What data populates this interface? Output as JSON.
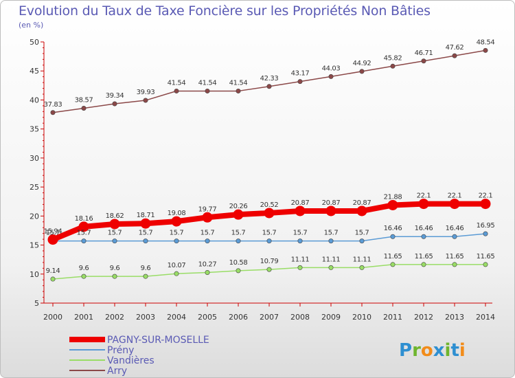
{
  "title": "Evolution du Taux de Taxe Foncière sur les Propriétés Non Bâties",
  "unit": "(en %)",
  "logo": {
    "letters": [
      "P",
      "r",
      "o",
      "x",
      "i",
      "t",
      "i"
    ],
    "colors": [
      "#2e8fd1",
      "#6fb52e",
      "#f28c1a",
      "#2e8fd1",
      "#6fb52e",
      "#2e8fd1",
      "#f28c1a"
    ]
  },
  "chart_data": {
    "type": "line",
    "title": "Evolution du Taux de Taxe Foncière sur les Propriétés Non Bâties",
    "ylabel": "(en %)",
    "x": [
      "2000",
      "2001",
      "2002",
      "2003",
      "2004",
      "2005",
      "2006",
      "2007",
      "2008",
      "2009",
      "2010",
      "2011",
      "2012",
      "2013",
      "2014"
    ],
    "ylim": [
      5,
      50
    ],
    "yticks": [
      5,
      10,
      15,
      20,
      25,
      30,
      35,
      40,
      45,
      50
    ],
    "grid": false,
    "legend_position": "bottom-left",
    "series": [
      {
        "name": "PAGNY-SUR-MOSELLE",
        "color": "#ee0000",
        "emphasis": true,
        "values": [
          15.94,
          18.16,
          18.62,
          18.71,
          19.08,
          19.77,
          20.26,
          20.52,
          20.87,
          20.87,
          20.87,
          21.88,
          22.1,
          22.1,
          22.1
        ],
        "labels": [
          "15.94",
          "18.16",
          "18.62",
          "18.71",
          "19.08",
          "19.77",
          "20.26",
          "20.52",
          "20.87",
          "20.87",
          "20.87",
          "21.88",
          "22.1",
          "22.1",
          "22.1"
        ]
      },
      {
        "name": "Prény",
        "color": "#5b9bd5",
        "values": [
          15.7,
          15.7,
          15.7,
          15.7,
          15.7,
          15.7,
          15.7,
          15.7,
          15.7,
          15.7,
          15.7,
          16.46,
          16.46,
          16.46,
          16.95
        ],
        "labels": [
          "15.7",
          "15.7",
          "15.7",
          "15.7",
          "15.7",
          "15.7",
          "15.7",
          "15.7",
          "15.7",
          "15.7",
          "15.7",
          "16.46",
          "16.46",
          "16.46",
          "16.95"
        ]
      },
      {
        "name": "Vandières",
        "color": "#99dd66",
        "values": [
          9.14,
          9.6,
          9.6,
          9.6,
          10.07,
          10.27,
          10.58,
          10.79,
          11.11,
          11.11,
          11.11,
          11.65,
          11.65,
          11.65,
          11.65
        ],
        "labels": [
          "9.14",
          "9.6",
          "9.6",
          "9.6",
          "10.07",
          "10.27",
          "10.58",
          "10.79",
          "11.11",
          "11.11",
          "11.11",
          "11.65",
          "11.65",
          "11.65",
          "11.65"
        ]
      },
      {
        "name": "Arry",
        "color": "#8b4848",
        "values": [
          37.83,
          38.57,
          39.34,
          39.93,
          41.54,
          41.54,
          41.54,
          42.33,
          43.17,
          44.03,
          44.92,
          45.82,
          46.71,
          47.62,
          48.54
        ],
        "labels": [
          "37.83",
          "38.57",
          "39.34",
          "39.93",
          "41.54",
          "41.54",
          "41.54",
          "42.33",
          "43.17",
          "44.03",
          "44.92",
          "45.82",
          "46.71",
          "47.62",
          "48.54"
        ]
      }
    ]
  }
}
